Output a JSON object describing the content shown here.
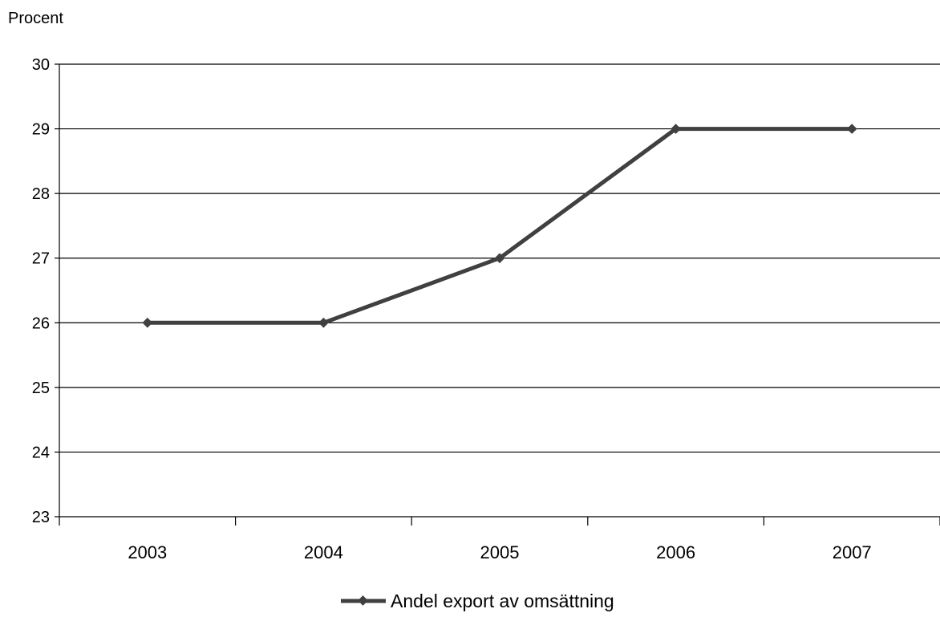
{
  "chart_data": {
    "type": "line",
    "ylabel": "Procent",
    "xlabel": "",
    "categories": [
      "2003",
      "2004",
      "2005",
      "2006",
      "2007"
    ],
    "series": [
      {
        "name": "Andel export av omsättning",
        "values": [
          26,
          26,
          27,
          29,
          29
        ],
        "color": "#404040"
      }
    ],
    "ylim": [
      23,
      30
    ],
    "yticks": [
      "23",
      "24",
      "25",
      "26",
      "27",
      "28",
      "29",
      "30"
    ],
    "grid": true,
    "legend": "bottom"
  }
}
